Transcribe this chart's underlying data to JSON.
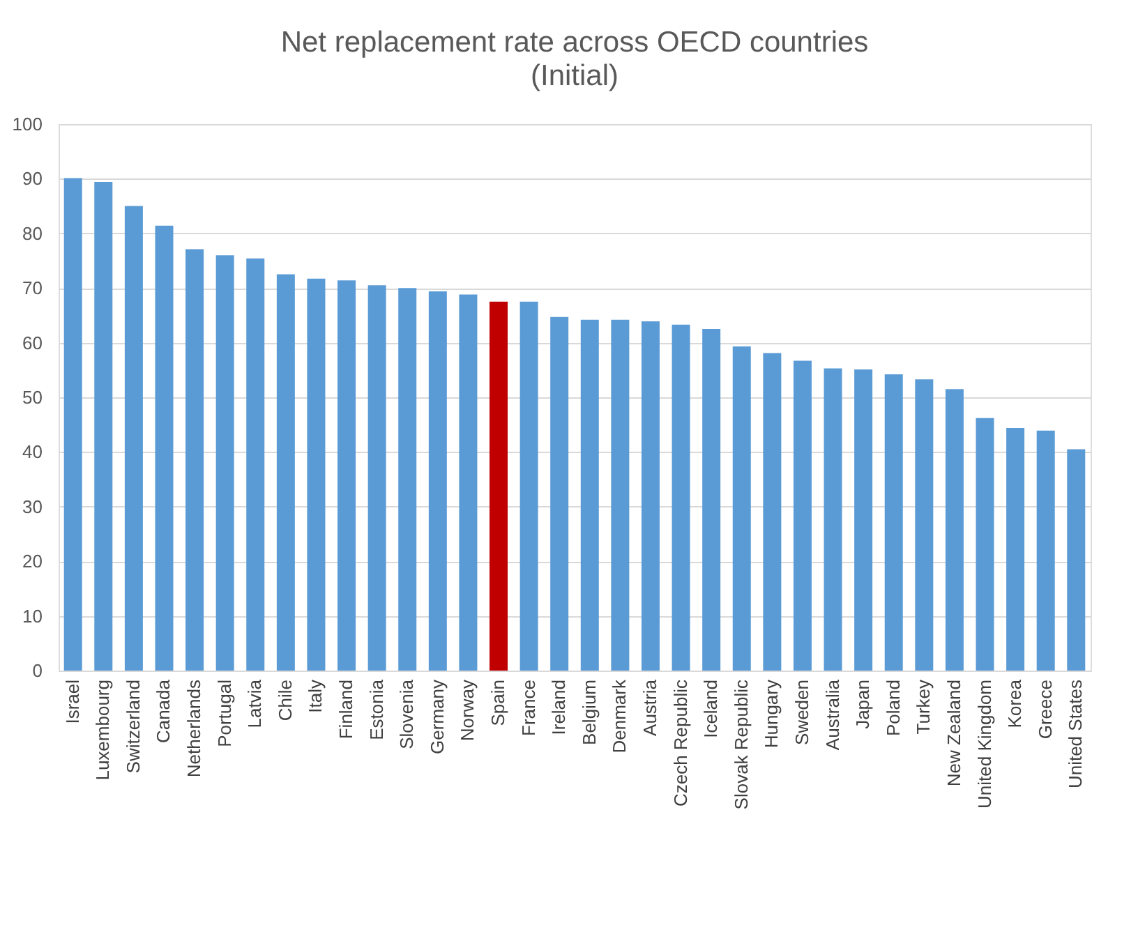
{
  "chart_data": {
    "type": "bar",
    "title": "Net replacement rate across OECD countries",
    "subtitle": "(Initial)",
    "categories": [
      "Israel",
      "Luxembourg",
      "Switzerland",
      "Canada",
      "Netherlands",
      "Portugal",
      "Latvia",
      "Chile",
      "Italy",
      "Finland",
      "Estonia",
      "Slovenia",
      "Germany",
      "Norway",
      "Spain",
      "France",
      "Ireland",
      "Belgium",
      "Denmark",
      "Austria",
      "Czech Republic",
      "Iceland",
      "Slovak Republic",
      "Hungary",
      "Sweden",
      "Australia",
      "Japan",
      "Poland",
      "Turkey",
      "New Zealand",
      "United Kingdom",
      "Korea",
      "Greece",
      "United States"
    ],
    "values": [
      90.1,
      89.4,
      85.0,
      81.4,
      77.1,
      76.0,
      75.4,
      72.5,
      71.7,
      71.4,
      70.5,
      70.0,
      69.4,
      68.8,
      67.5,
      67.5,
      64.7,
      64.2,
      64.2,
      63.9,
      63.3,
      62.5,
      59.3,
      58.1,
      56.7,
      55.3,
      55.1,
      54.2,
      53.3,
      51.5,
      46.2,
      44.4,
      43.9,
      40.5
    ],
    "colors": [
      "#5b9bd5",
      "#5b9bd5",
      "#5b9bd5",
      "#5b9bd5",
      "#5b9bd5",
      "#5b9bd5",
      "#5b9bd5",
      "#5b9bd5",
      "#5b9bd5",
      "#5b9bd5",
      "#5b9bd5",
      "#5b9bd5",
      "#5b9bd5",
      "#5b9bd5",
      "#c00000",
      "#5b9bd5",
      "#5b9bd5",
      "#5b9bd5",
      "#5b9bd5",
      "#5b9bd5",
      "#5b9bd5",
      "#5b9bd5",
      "#5b9bd5",
      "#5b9bd5",
      "#5b9bd5",
      "#5b9bd5",
      "#5b9bd5",
      "#5b9bd5",
      "#5b9bd5",
      "#5b9bd5",
      "#5b9bd5",
      "#5b9bd5",
      "#5b9bd5",
      "#5b9bd5"
    ],
    "ylim": [
      0,
      100
    ],
    "yticks": [
      0,
      10,
      20,
      30,
      40,
      50,
      60,
      70,
      80,
      90,
      100
    ],
    "grid": "y"
  }
}
